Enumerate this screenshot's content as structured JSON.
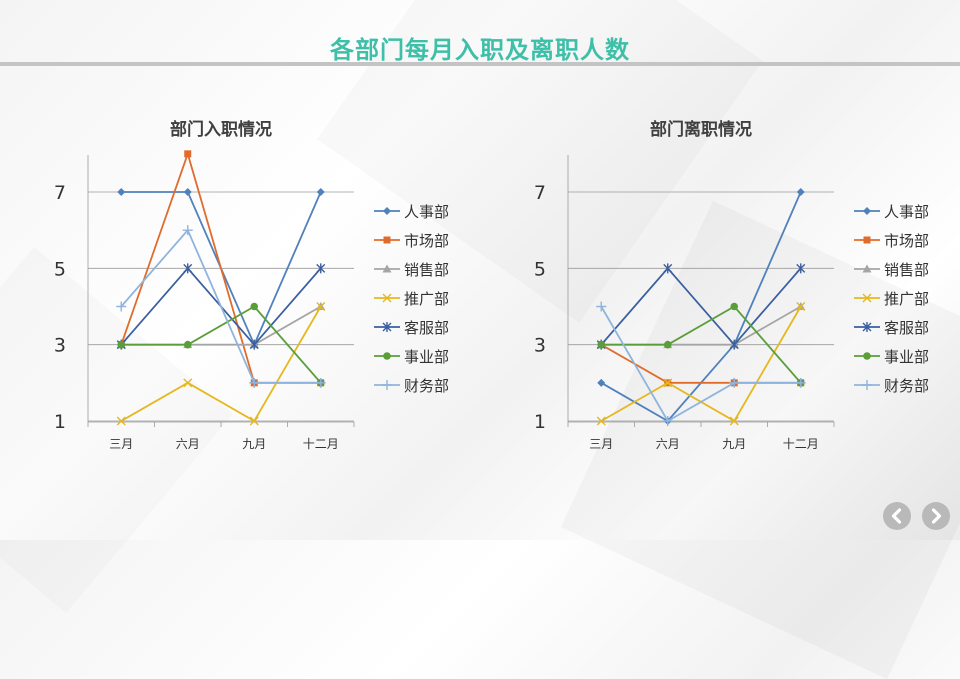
{
  "page": {
    "title": "各部门每月入职及离职人数"
  },
  "nav": {
    "prev_icon": "chevron-left-icon",
    "next_icon": "chevron-right-icon"
  },
  "chart_data": [
    {
      "type": "line",
      "title": "部门入职情况",
      "categories": [
        "三月",
        "六月",
        "九月",
        "十二月"
      ],
      "y_ticks": [
        1,
        3,
        5,
        7
      ],
      "ylim": [
        1,
        7
      ],
      "legend_position": "right",
      "series": [
        {
          "name": "人事部",
          "color": "#4f81bd",
          "marker": "diamond",
          "values": [
            7,
            7,
            3,
            7
          ]
        },
        {
          "name": "市场部",
          "color": "#e06c2c",
          "marker": "square",
          "values": [
            3,
            8,
            2,
            2
          ]
        },
        {
          "name": "销售部",
          "color": "#a5a5a5",
          "marker": "triangle",
          "values": [
            3,
            3,
            3,
            4
          ]
        },
        {
          "name": "推广部",
          "color": "#e5b820",
          "marker": "x",
          "values": [
            1,
            2,
            1,
            4
          ]
        },
        {
          "name": "客服部",
          "color": "#3a5fa0",
          "marker": "star",
          "values": [
            3,
            5,
            3,
            5
          ]
        },
        {
          "name": "事业部",
          "color": "#5a9e3a",
          "marker": "circle",
          "values": [
            3,
            3,
            4,
            2
          ]
        },
        {
          "name": "财务部",
          "color": "#8fb4dd",
          "marker": "plus",
          "values": [
            4,
            6,
            2,
            2
          ]
        }
      ]
    },
    {
      "type": "line",
      "title": "部门离职情况",
      "categories": [
        "三月",
        "六月",
        "九月",
        "十二月"
      ],
      "y_ticks": [
        1,
        3,
        5,
        7
      ],
      "ylim": [
        1,
        7
      ],
      "legend_position": "right",
      "series": [
        {
          "name": "人事部",
          "color": "#4f81bd",
          "marker": "diamond",
          "values": [
            2,
            1,
            3,
            7
          ]
        },
        {
          "name": "市场部",
          "color": "#e06c2c",
          "marker": "square",
          "values": [
            3,
            2,
            2,
            2
          ]
        },
        {
          "name": "销售部",
          "color": "#a5a5a5",
          "marker": "triangle",
          "values": [
            3,
            3,
            3,
            4
          ]
        },
        {
          "name": "推广部",
          "color": "#e5b820",
          "marker": "x",
          "values": [
            1,
            2,
            1,
            4
          ]
        },
        {
          "name": "客服部",
          "color": "#3a5fa0",
          "marker": "star",
          "values": [
            3,
            5,
            3,
            5
          ]
        },
        {
          "name": "事业部",
          "color": "#5a9e3a",
          "marker": "circle",
          "values": [
            3,
            3,
            4,
            2
          ]
        },
        {
          "name": "财务部",
          "color": "#8fb4dd",
          "marker": "plus",
          "values": [
            4,
            1,
            2,
            2
          ]
        }
      ]
    }
  ]
}
